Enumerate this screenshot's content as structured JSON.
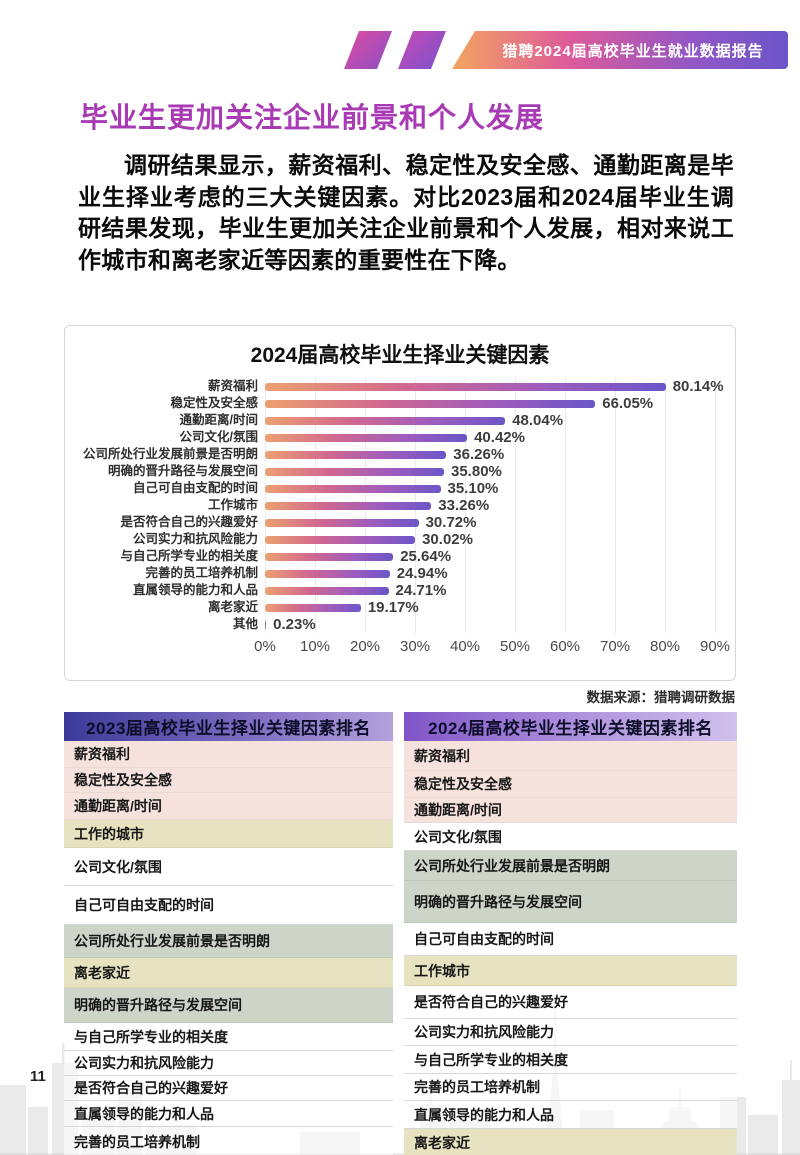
{
  "header": {
    "banner_title": "猎聘2024届高校毕业生就业数据报告"
  },
  "page": {
    "title": "毕业生更加关注企业前景和个人发展",
    "paragraph": "调研结果显示，薪资福利、稳定性及安全感、通勤距离是毕业生择业考虑的三大关键因素。对比2023届和2024届毕业生调研结果发现，毕业生更加关注企业前景和个人发展，相对来说工作城市和离老家近等因素的重要性在下降。",
    "source_note": "数据来源：猎聘调研数据",
    "page_number": "11"
  },
  "chart_data": {
    "type": "bar",
    "orientation": "horizontal",
    "title": "2024届高校毕业生择业关键因素",
    "categories": [
      "薪资福利",
      "稳定性及安全感",
      "通勤距离/时间",
      "公司文化/氛围",
      "公司所处行业发展前景是否明朗",
      "明确的晋升路径与发展空间",
      "自己可自由支配的时间",
      "工作城市",
      "是否符合自己的兴趣爱好",
      "公司实力和抗风险能力",
      "与自己所学专业的相关度",
      "完善的员工培养机制",
      "直属领导的能力和人品",
      "离老家近",
      "其他"
    ],
    "values": [
      80.14,
      66.05,
      48.04,
      40.42,
      36.26,
      35.8,
      35.1,
      33.26,
      30.72,
      30.02,
      25.64,
      24.94,
      24.71,
      19.17,
      0.23
    ],
    "value_labels": [
      "80.14%",
      "66.05%",
      "48.04%",
      "40.42%",
      "36.26%",
      "35.80%",
      "35.10%",
      "33.26%",
      "30.72%",
      "30.02%",
      "25.64%",
      "24.94%",
      "24.71%",
      "19.17%",
      "0.23%"
    ],
    "x_ticks": [
      "0%",
      "10%",
      "20%",
      "30%",
      "40%",
      "50%",
      "60%",
      "70%",
      "80%",
      "90%"
    ],
    "xlim": [
      0,
      90
    ],
    "grid": true,
    "legend": false,
    "bar_gradient": [
      "#ECA06F",
      "#D1688F",
      "#9E5CBE",
      "#6B56C8"
    ]
  },
  "tables": {
    "left": {
      "title": "2023届高校毕业生择业关键因素排名",
      "rows": [
        {
          "label": "薪资福利",
          "tone": "pink"
        },
        {
          "label": "稳定性及安全感",
          "tone": "pink"
        },
        {
          "label": "通勤距离/时间",
          "tone": "pink"
        },
        {
          "label": "工作的城市",
          "tone": "khaki"
        },
        {
          "label": "公司文化/氛围",
          "tone": "white"
        },
        {
          "label": "自己可自由支配的时间",
          "tone": "white"
        },
        {
          "label": "公司所处行业发展前景是否明朗",
          "tone": "green"
        },
        {
          "label": "离老家近",
          "tone": "khaki"
        },
        {
          "label": "明确的晋升路径与发展空间",
          "tone": "green"
        },
        {
          "label": "与自己所学专业的相关度",
          "tone": "white"
        },
        {
          "label": "公司实力和抗风险能力",
          "tone": "white"
        },
        {
          "label": "是否符合自己的兴趣爱好",
          "tone": "white"
        },
        {
          "label": "直属领导的能力和人品",
          "tone": "white"
        },
        {
          "label": "完善的员工培养机制",
          "tone": "white"
        }
      ]
    },
    "right": {
      "title": "2024届高校毕业生择业关键因素排名",
      "rows": [
        {
          "label": "薪资福利",
          "tone": "pink"
        },
        {
          "label": "稳定性及安全感",
          "tone": "pink"
        },
        {
          "label": "通勤距离/时间",
          "tone": "pink"
        },
        {
          "label": "公司文化/氛围",
          "tone": "white"
        },
        {
          "label": "公司所处行业发展前景是否明朗",
          "tone": "green"
        },
        {
          "label": "明确的晋升路径与发展空间",
          "tone": "green"
        },
        {
          "label": "自己可自由支配的时间",
          "tone": "white"
        },
        {
          "label": "工作城市",
          "tone": "khaki"
        },
        {
          "label": "是否符合自己的兴趣爱好",
          "tone": "white"
        },
        {
          "label": "公司实力和抗风险能力",
          "tone": "white"
        },
        {
          "label": "与自己所学专业的相关度",
          "tone": "white"
        },
        {
          "label": "完善的员工培养机制",
          "tone": "white"
        },
        {
          "label": "直属领导的能力和人品",
          "tone": "white"
        },
        {
          "label": "离老家近",
          "tone": "khaki"
        }
      ]
    }
  },
  "colors": {
    "accent_title": "#A83AB4",
    "banner_gradient": [
      "#F3A45F",
      "#DD5B9B",
      "#6C55C8"
    ],
    "row_pink": "#F6E2DD",
    "row_khaki": "#E7E3C1",
    "row_green": "#CDD4C8",
    "header_left_gradient": [
      "#3B3A99",
      "#B2A1DC"
    ],
    "header_right_gradient": [
      "#8055C8",
      "#D0C0EC"
    ]
  }
}
